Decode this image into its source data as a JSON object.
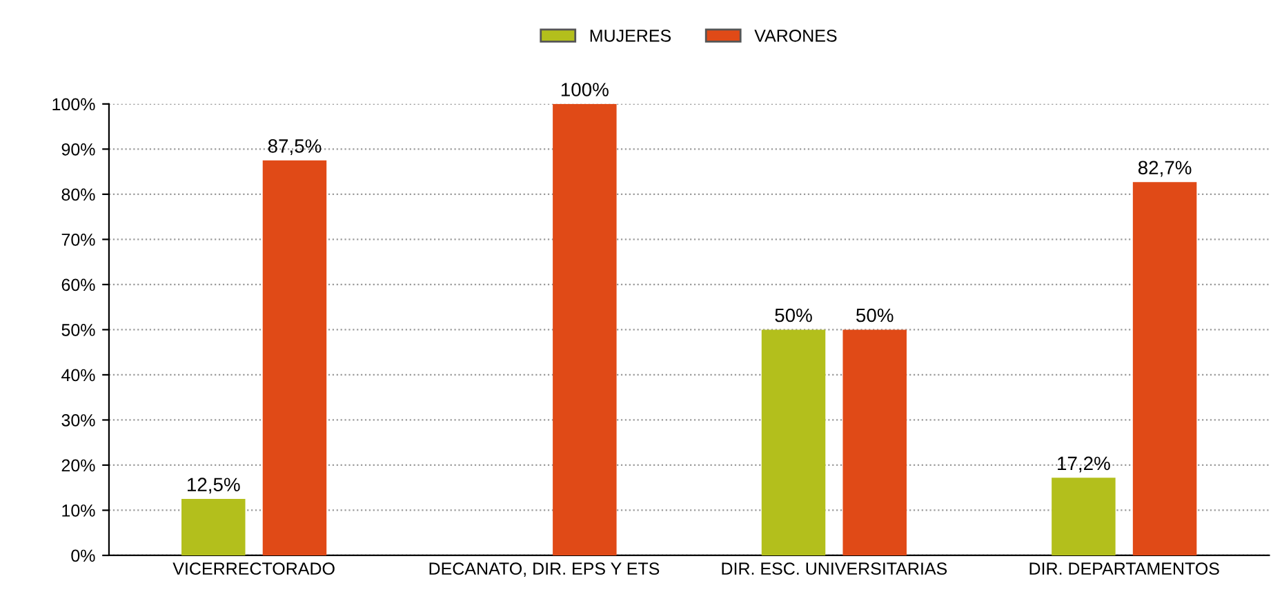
{
  "chart_data": {
    "type": "bar",
    "categories": [
      "VICERRECTORADO",
      "DECANATO, DIR. EPS Y ETS",
      "DIR. ESC. UNIVERSITARIAS",
      "DIR. DEPARTAMENTOS"
    ],
    "series": [
      {
        "name": "MUJERES",
        "color": "#b3bf1c",
        "values": [
          12.5,
          0,
          50,
          17.2
        ],
        "value_labels": [
          "12,5%",
          null,
          "50%",
          "17,2%"
        ]
      },
      {
        "name": "VARONES",
        "color": "#e04a17",
        "values": [
          87.5,
          100,
          50,
          82.7
        ],
        "value_labels": [
          "87,5%",
          "100%",
          "50%",
          "82,7%"
        ]
      }
    ],
    "ylim": [
      0,
      100
    ],
    "yticks": [
      {
        "value": 0,
        "label": "0%"
      },
      {
        "value": 10,
        "label": "10%"
      },
      {
        "value": 20,
        "label": "20%"
      },
      {
        "value": 30,
        "label": "30%"
      },
      {
        "value": 40,
        "label": "40%"
      },
      {
        "value": 50,
        "label": "50%"
      },
      {
        "value": 60,
        "label": "60%"
      },
      {
        "value": 70,
        "label": "70%"
      },
      {
        "value": 80,
        "label": "80%"
      },
      {
        "value": 90,
        "label": "90%"
      },
      {
        "value": 100,
        "label": "100%"
      }
    ],
    "grid": "y",
    "legend": "top"
  }
}
